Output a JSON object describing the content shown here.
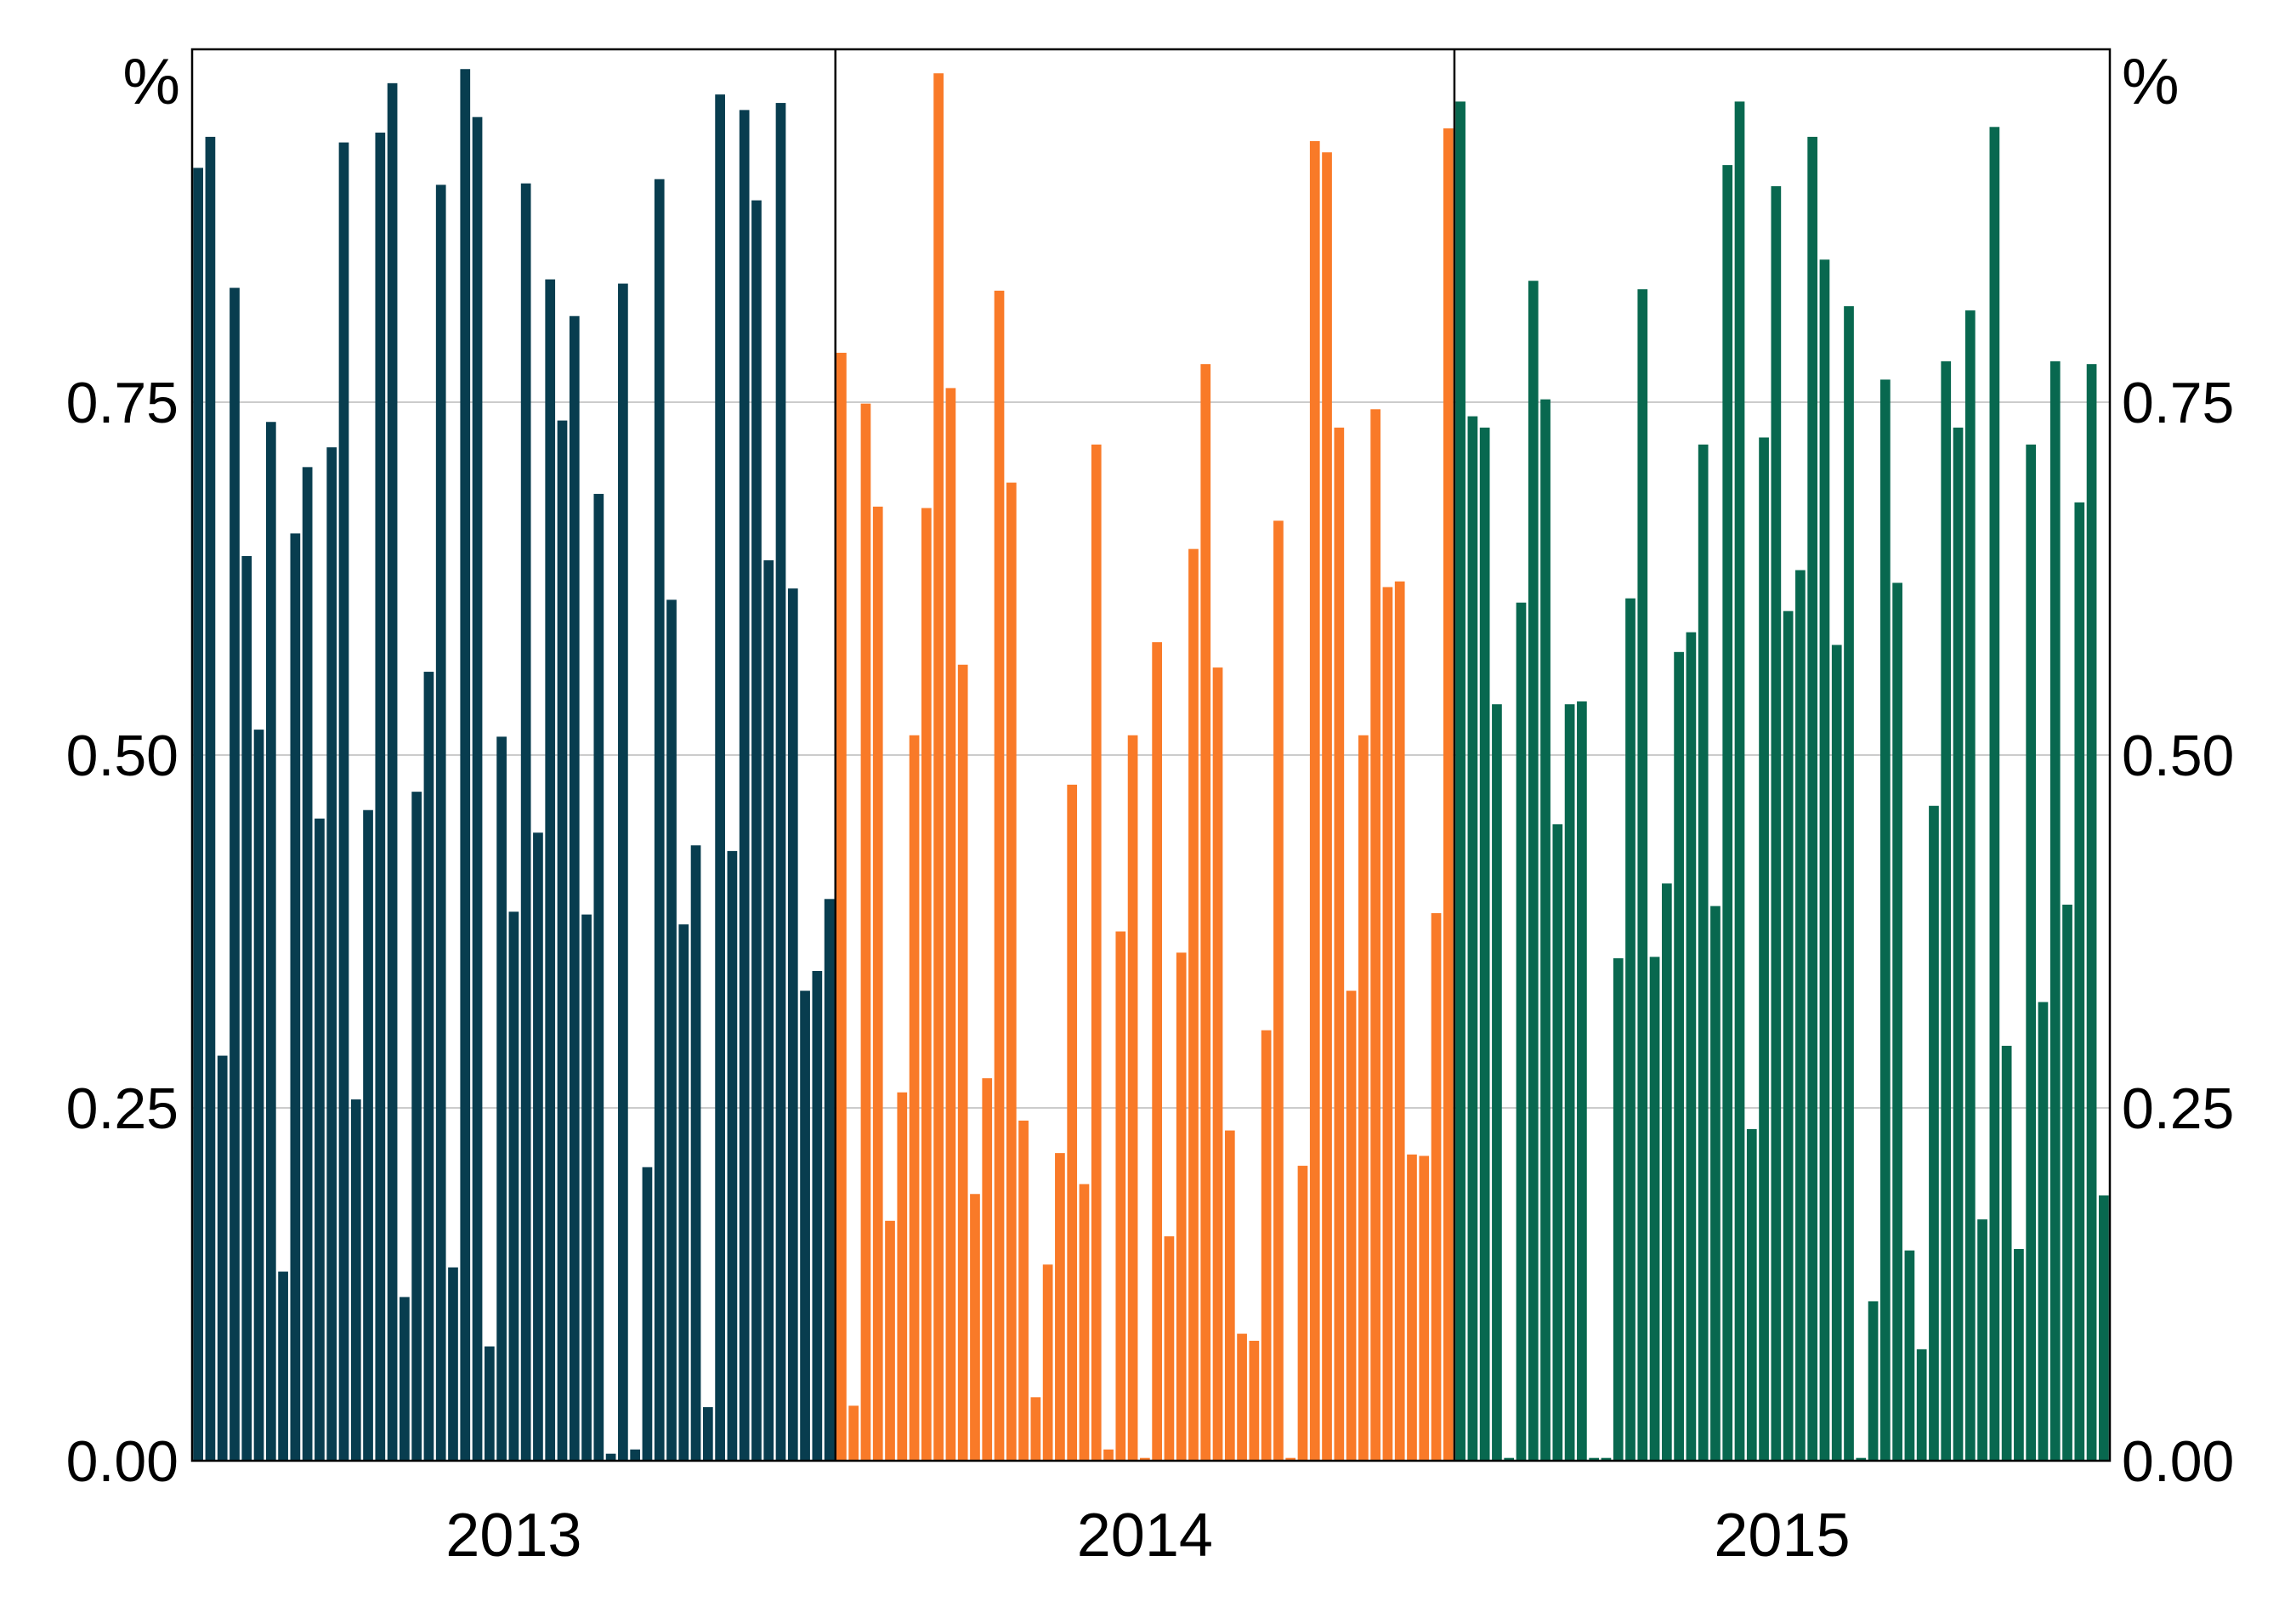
{
  "chart_data": {
    "type": "bar",
    "title": "",
    "xlabel": "",
    "ylabel": "",
    "unit_label_left": "%",
    "unit_label_right": "%",
    "ylim": [
      0,
      1.0
    ],
    "y_ticks": [
      "0.00",
      "0.25",
      "0.50",
      "0.75"
    ],
    "grid": "horizontal",
    "series": [
      {
        "year": "2013",
        "color": "#083D4F",
        "values": [
          0.916,
          0.938,
          0.287,
          0.831,
          0.641,
          0.518,
          0.736,
          0.134,
          0.657,
          0.704,
          0.455,
          0.718,
          0.934,
          0.256,
          0.461,
          0.941,
          0.976,
          0.116,
          0.474,
          0.559,
          0.904,
          0.137,
          0.986,
          0.952,
          0.081,
          0.513,
          0.389,
          0.905,
          0.445,
          0.837,
          0.737,
          0.811,
          0.387,
          0.685,
          0.005,
          0.834,
          0.008,
          0.208,
          0.908,
          0.61,
          0.38,
          0.436,
          0.038,
          0.968,
          0.432,
          0.957,
          0.893,
          0.638,
          0.962,
          0.618,
          0.333,
          0.347,
          0.398
        ]
      },
      {
        "year": "2014",
        "color": "#F97A28",
        "values": [
          0.785,
          0.039,
          0.749,
          0.676,
          0.17,
          0.261,
          0.514,
          0.675,
          0.983,
          0.76,
          0.564,
          0.189,
          0.271,
          0.829,
          0.693,
          0.241,
          0.045,
          0.139,
          0.218,
          0.479,
          0.196,
          0.72,
          0.008,
          0.375,
          0.514,
          0.002,
          0.58,
          0.159,
          0.36,
          0.646,
          0.777,
          0.562,
          0.234,
          0.09,
          0.085,
          0.305,
          0.666,
          0.002,
          0.209,
          0.935,
          0.927,
          0.732,
          0.333,
          0.514,
          0.745,
          0.619,
          0.623,
          0.217,
          0.216,
          0.388,
          0.944
        ]
      },
      {
        "year": "2015",
        "color": "#08684F",
        "values": [
          0.963,
          0.74,
          0.732,
          0.536,
          0.002,
          0.608,
          0.836,
          0.752,
          0.451,
          0.536,
          0.538,
          0.002,
          0.002,
          0.356,
          0.611,
          0.83,
          0.357,
          0.409,
          0.573,
          0.587,
          0.72,
          0.393,
          0.918,
          0.963,
          0.235,
          0.725,
          0.903,
          0.602,
          0.631,
          0.938,
          0.851,
          0.578,
          0.818,
          0.002,
          0.113,
          0.766,
          0.622,
          0.149,
          0.079,
          0.464,
          0.779,
          0.732,
          0.815,
          0.171,
          0.945,
          0.294,
          0.15,
          0.72,
          0.325,
          0.779,
          0.394,
          0.679,
          0.777,
          0.188
        ]
      }
    ]
  }
}
